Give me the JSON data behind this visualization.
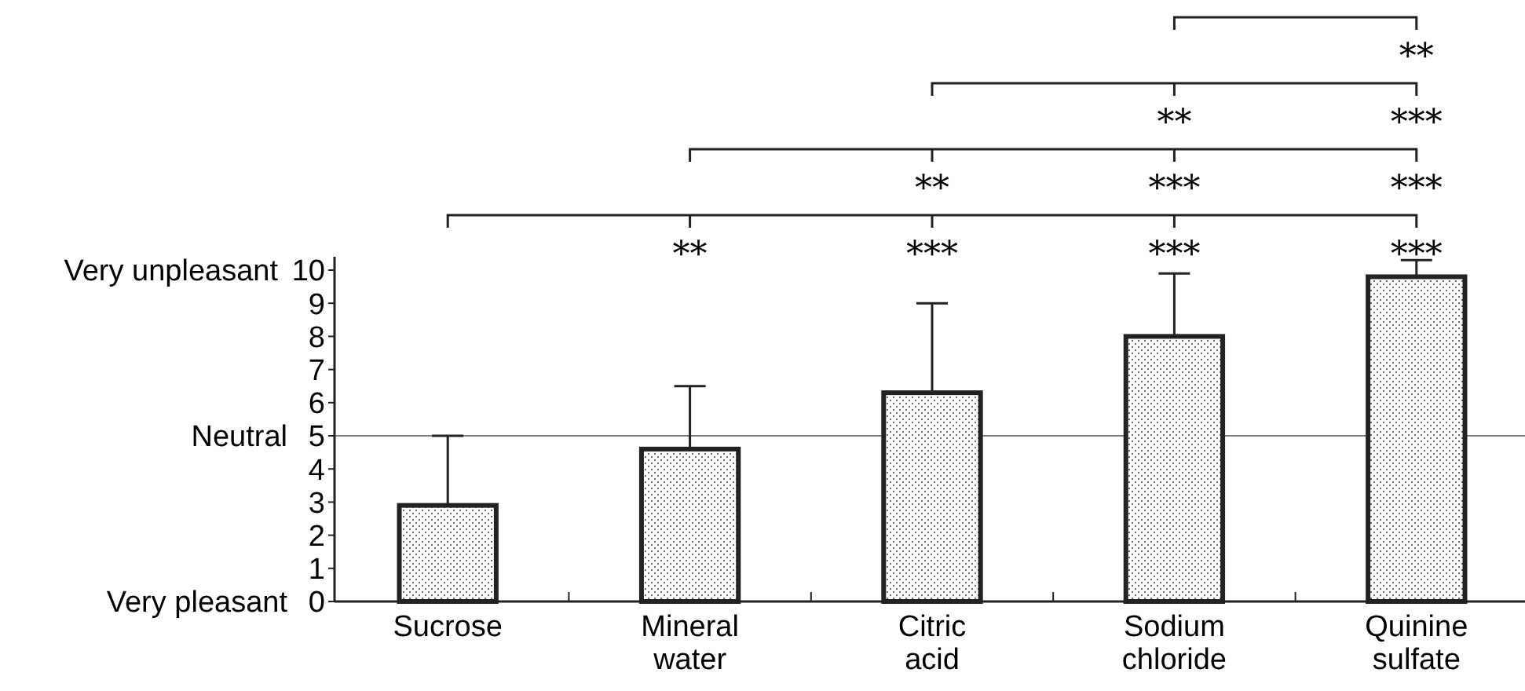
{
  "chart_data": {
    "type": "bar",
    "categories": [
      "Sucrose",
      "Mineral water",
      "Citric acid",
      "Sodium chloride",
      "Quinine sulfate"
    ],
    "values": [
      2.9,
      4.6,
      6.3,
      8.0,
      9.8
    ],
    "errors": [
      [
        2.9,
        5.0
      ],
      [
        4.6,
        6.5
      ],
      [
        6.3,
        9.0
      ],
      [
        8.0,
        9.9
      ],
      [
        9.8,
        10.3
      ]
    ],
    "color": "#222222",
    "ylim": [
      0,
      10.4
    ],
    "yticks": [
      0,
      1,
      2,
      3,
      4,
      5,
      6,
      7,
      8,
      9,
      10
    ],
    "grid": false,
    "ref_lines": [
      {
        "axis": "y",
        "value": 5,
        "label": "Neutral",
        "color": "#808080"
      }
    ],
    "annotations": [
      "Very pleasant",
      "Very unpleasant",
      "**",
      "***",
      "***",
      "***",
      "**",
      "***",
      "***",
      "**",
      "***",
      "**"
    ]
  }
}
